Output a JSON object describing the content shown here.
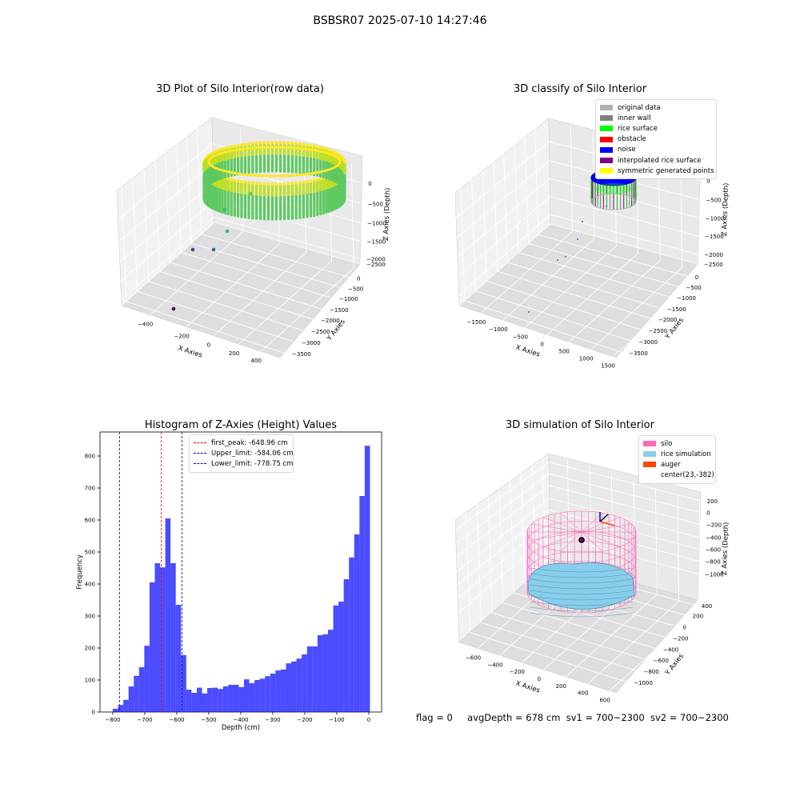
{
  "suptitle": "BSBSR07 2025-07-10 14:27:46",
  "status": {
    "flag": "flag = 0",
    "avg_depth": "avgDepth = 678 cm",
    "sv1": "sv1 = 700~2300",
    "sv2": "sv2 = 700~2300"
  },
  "chart_data": [
    {
      "type": "scatter",
      "projection": "3d",
      "title": "3D Plot of Silo Interior(row data)",
      "xlabel": "X Axies",
      "ylabel": "Y Axies",
      "zlabel": "Z Axies (Depth)",
      "xticks": [
        "−400",
        "−200",
        "0",
        "200",
        "400"
      ],
      "yticks": [
        "0",
        "−500",
        "−1000",
        "−1500",
        "−2000",
        "−2500",
        "−3000",
        "−3500"
      ],
      "zticks": [
        "0",
        "−500",
        "−1000",
        "−1500",
        "−2000",
        "−2500"
      ],
      "xlim": [
        -480,
        480
      ],
      "ylim": [
        -3700,
        100
      ],
      "zlim": [
        -2700,
        100
      ],
      "colormap": "viridis",
      "surface_ring": {
        "center_x": 0,
        "center_y": -400,
        "radius": 470,
        "z_top": -50,
        "z_bottom": -900
      },
      "outlier_points": [
        {
          "x": 80,
          "y": -1200,
          "z": -1100
        },
        {
          "x": 60,
          "y": -2000,
          "z": -1400
        },
        {
          "x": 30,
          "y": -2500,
          "z": -1700
        },
        {
          "x": -80,
          "y": -2600,
          "z": -1900
        },
        {
          "x": -120,
          "y": -3000,
          "z": -2000
        },
        {
          "x": -150,
          "y": -3500,
          "z": -2700
        }
      ]
    },
    {
      "type": "scatter",
      "projection": "3d",
      "title": "3D classify of Silo Interior",
      "xlabel": "X Axies",
      "ylabel": "Y Axies",
      "zlabel": "Z Axies (Depth)",
      "xticks": [
        "−1500",
        "−1000",
        "−500",
        "0",
        "500",
        "1000",
        "1500"
      ],
      "yticks": [
        "0",
        "−500",
        "−1000",
        "−1500",
        "−2000",
        "−2500",
        "−3000",
        "−3500"
      ],
      "zticks": [
        "0",
        "−500",
        "−1000",
        "−1500",
        "−2000",
        "−2500"
      ],
      "legend": {
        "position": "top-right",
        "entries": [
          {
            "label": "original data",
            "color": "#b0b0b0"
          },
          {
            "label": "inner wall",
            "color": "#808080"
          },
          {
            "label": "rice surface",
            "color": "#00ff00"
          },
          {
            "label": "obstacle",
            "color": "#ff0000"
          },
          {
            "label": "noise",
            "color": "#0000ff"
          },
          {
            "label": "interpolated rice surface",
            "color": "#800080"
          },
          {
            "label": "symmetric generated points",
            "color": "#ffff00"
          }
        ]
      }
    },
    {
      "type": "bar",
      "title": "Histogram of Z-Axies (Height) Values",
      "xlabel": "Depth (cm)",
      "ylabel": "Frequency",
      "xlim": [
        -840,
        40
      ],
      "ylim": [
        0,
        875
      ],
      "xticks": [
        -800,
        -700,
        -600,
        -500,
        -400,
        -300,
        -200,
        -100,
        0
      ],
      "yticks": [
        0,
        100,
        200,
        300,
        400,
        500,
        600,
        700,
        800
      ],
      "bin_start": -800,
      "bin_width": 16.4,
      "bar_color": "#0000ff",
      "counts": [
        10,
        22,
        38,
        80,
        113,
        140,
        207,
        405,
        465,
        452,
        605,
        465,
        335,
        178,
        70,
        60,
        76,
        58,
        75,
        76,
        72,
        80,
        85,
        85,
        78,
        102,
        90,
        100,
        104,
        112,
        120,
        130,
        133,
        152,
        158,
        167,
        180,
        205,
        205,
        240,
        243,
        257,
        333,
        345,
        415,
        483,
        555,
        675,
        832
      ],
      "vlines": [
        {
          "label": "first_peak: -648.96 cm",
          "x": -648.96,
          "color": "#ff0000"
        },
        {
          "label": "Upper_limit: -584.06 cm",
          "x": -584.06,
          "color": "#0000cc"
        },
        {
          "label": "Lower_limit: -778.75 cm",
          "x": -778.75,
          "color": "#0000cc"
        }
      ],
      "legend": {
        "position": "top-center"
      }
    },
    {
      "type": "scatter",
      "projection": "3d",
      "title": "3D simulation of Silo Interior",
      "xlabel": "X Axies",
      "ylabel": "Y Axies",
      "zlabel": "Z Axies (Depth)",
      "xticks": [
        "−600",
        "−400",
        "−200",
        "0",
        "200",
        "400",
        "600"
      ],
      "yticks": [
        "400",
        "200",
        "0",
        "−200",
        "−400",
        "−600",
        "−800",
        "−1000"
      ],
      "zticks": [
        "200",
        "0",
        "−200",
        "−400",
        "−600",
        "−800",
        "−1000"
      ],
      "legend": {
        "position": "top-right",
        "entries": [
          {
            "label": "silo",
            "color": "#ff69b4"
          },
          {
            "label": "rice simulation",
            "color": "#87ceeb"
          },
          {
            "label": "auger",
            "color": "#ff4500"
          },
          {
            "label": "center(23,-382)",
            "color": "#ffffff"
          }
        ]
      }
    }
  ]
}
